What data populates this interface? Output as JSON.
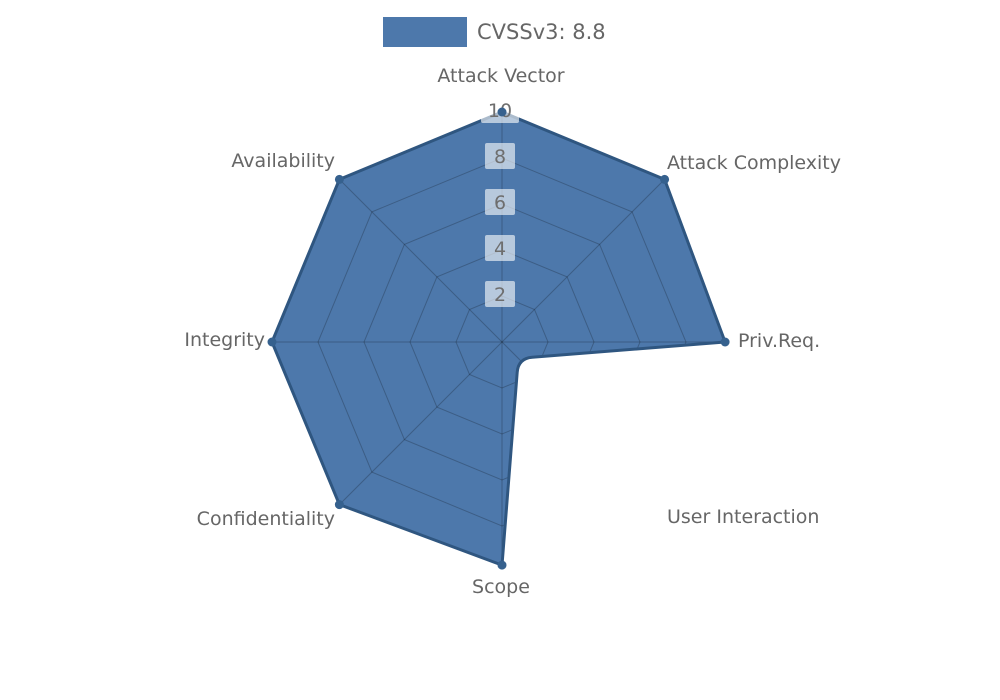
{
  "legend": {
    "label": "CVSSv3: 8.8"
  },
  "chart_data": {
    "type": "radar",
    "title": "CVSSv3: 8.8",
    "categories": [
      "Attack Vector",
      "Attack Complexity",
      "Priv.Req.",
      "User Interaction",
      "Scope",
      "Confidentiality",
      "Integrity",
      "Availability"
    ],
    "series": [
      {
        "name": "CVSSv3: 8.8",
        "values": [
          10,
          10,
          9.7,
          1,
          9.7,
          10,
          10,
          10
        ]
      }
    ],
    "radial_ticks": [
      2,
      4,
      6,
      8,
      10
    ],
    "rlim": [
      0,
      10
    ],
    "grid": true,
    "legend_position": "top-center",
    "grid_visible_only_inside_fill": true,
    "colors": {
      "fill": "#4d78ab",
      "border": "#2f5680",
      "marker": "#36618e",
      "grid_line": "rgba(0,0,0,0.22)",
      "tick_box": "rgba(255,255,255,0.6)",
      "tick_text": "#6e6e6e",
      "label_text": "#666666"
    }
  }
}
